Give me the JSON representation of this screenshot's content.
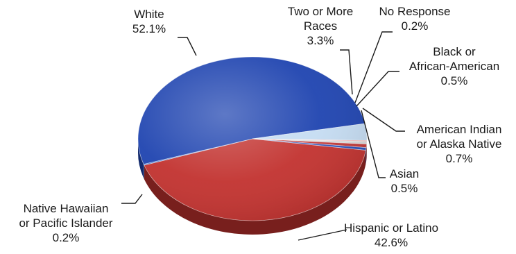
{
  "chart_data": {
    "type": "pie",
    "title": "",
    "start_category": "Hispanic or Latino",
    "slices": [
      {
        "category": "Hispanic or Latino",
        "value": 42.6,
        "label_lines": [
          "Hispanic or Latino",
          "42.6%"
        ],
        "color": "#c2322f"
      },
      {
        "category": "Native Hawaiian or Pacific Islander",
        "value": 0.2,
        "label_lines": [
          "Native Hawaiian",
          "or Pacific Islander",
          "0.2%"
        ],
        "color": "#2f6bd1"
      },
      {
        "category": "White",
        "value": 52.1,
        "label_lines": [
          "White",
          "52.1%"
        ],
        "color": "#1f44b0"
      },
      {
        "category": "Two or More Races",
        "value": 3.3,
        "label_lines": [
          "Two or More",
          "Races",
          "3.3%"
        ],
        "color": "#c5dcf2"
      },
      {
        "category": "No Response",
        "value": 0.2,
        "label_lines": [
          "No Response",
          "0.2%"
        ],
        "color": "#f0a3a3"
      },
      {
        "category": "Black or African-American",
        "value": 0.5,
        "label_lines": [
          "Black or",
          "African-American",
          "0.5%"
        ],
        "color": "#d9d9d9"
      },
      {
        "category": "American Indian or Alaska Native",
        "value": 0.7,
        "label_lines": [
          "American Indian",
          "or Alaska Native",
          "0.7%"
        ],
        "color": "#c23a3a"
      },
      {
        "category": "Asian",
        "value": 0.5,
        "label_lines": [
          "Asian",
          "0.5%"
        ],
        "color": "#2a4fb8"
      }
    ],
    "legend": "none",
    "style": "3d-exploded-labels-with-leader-lines"
  }
}
